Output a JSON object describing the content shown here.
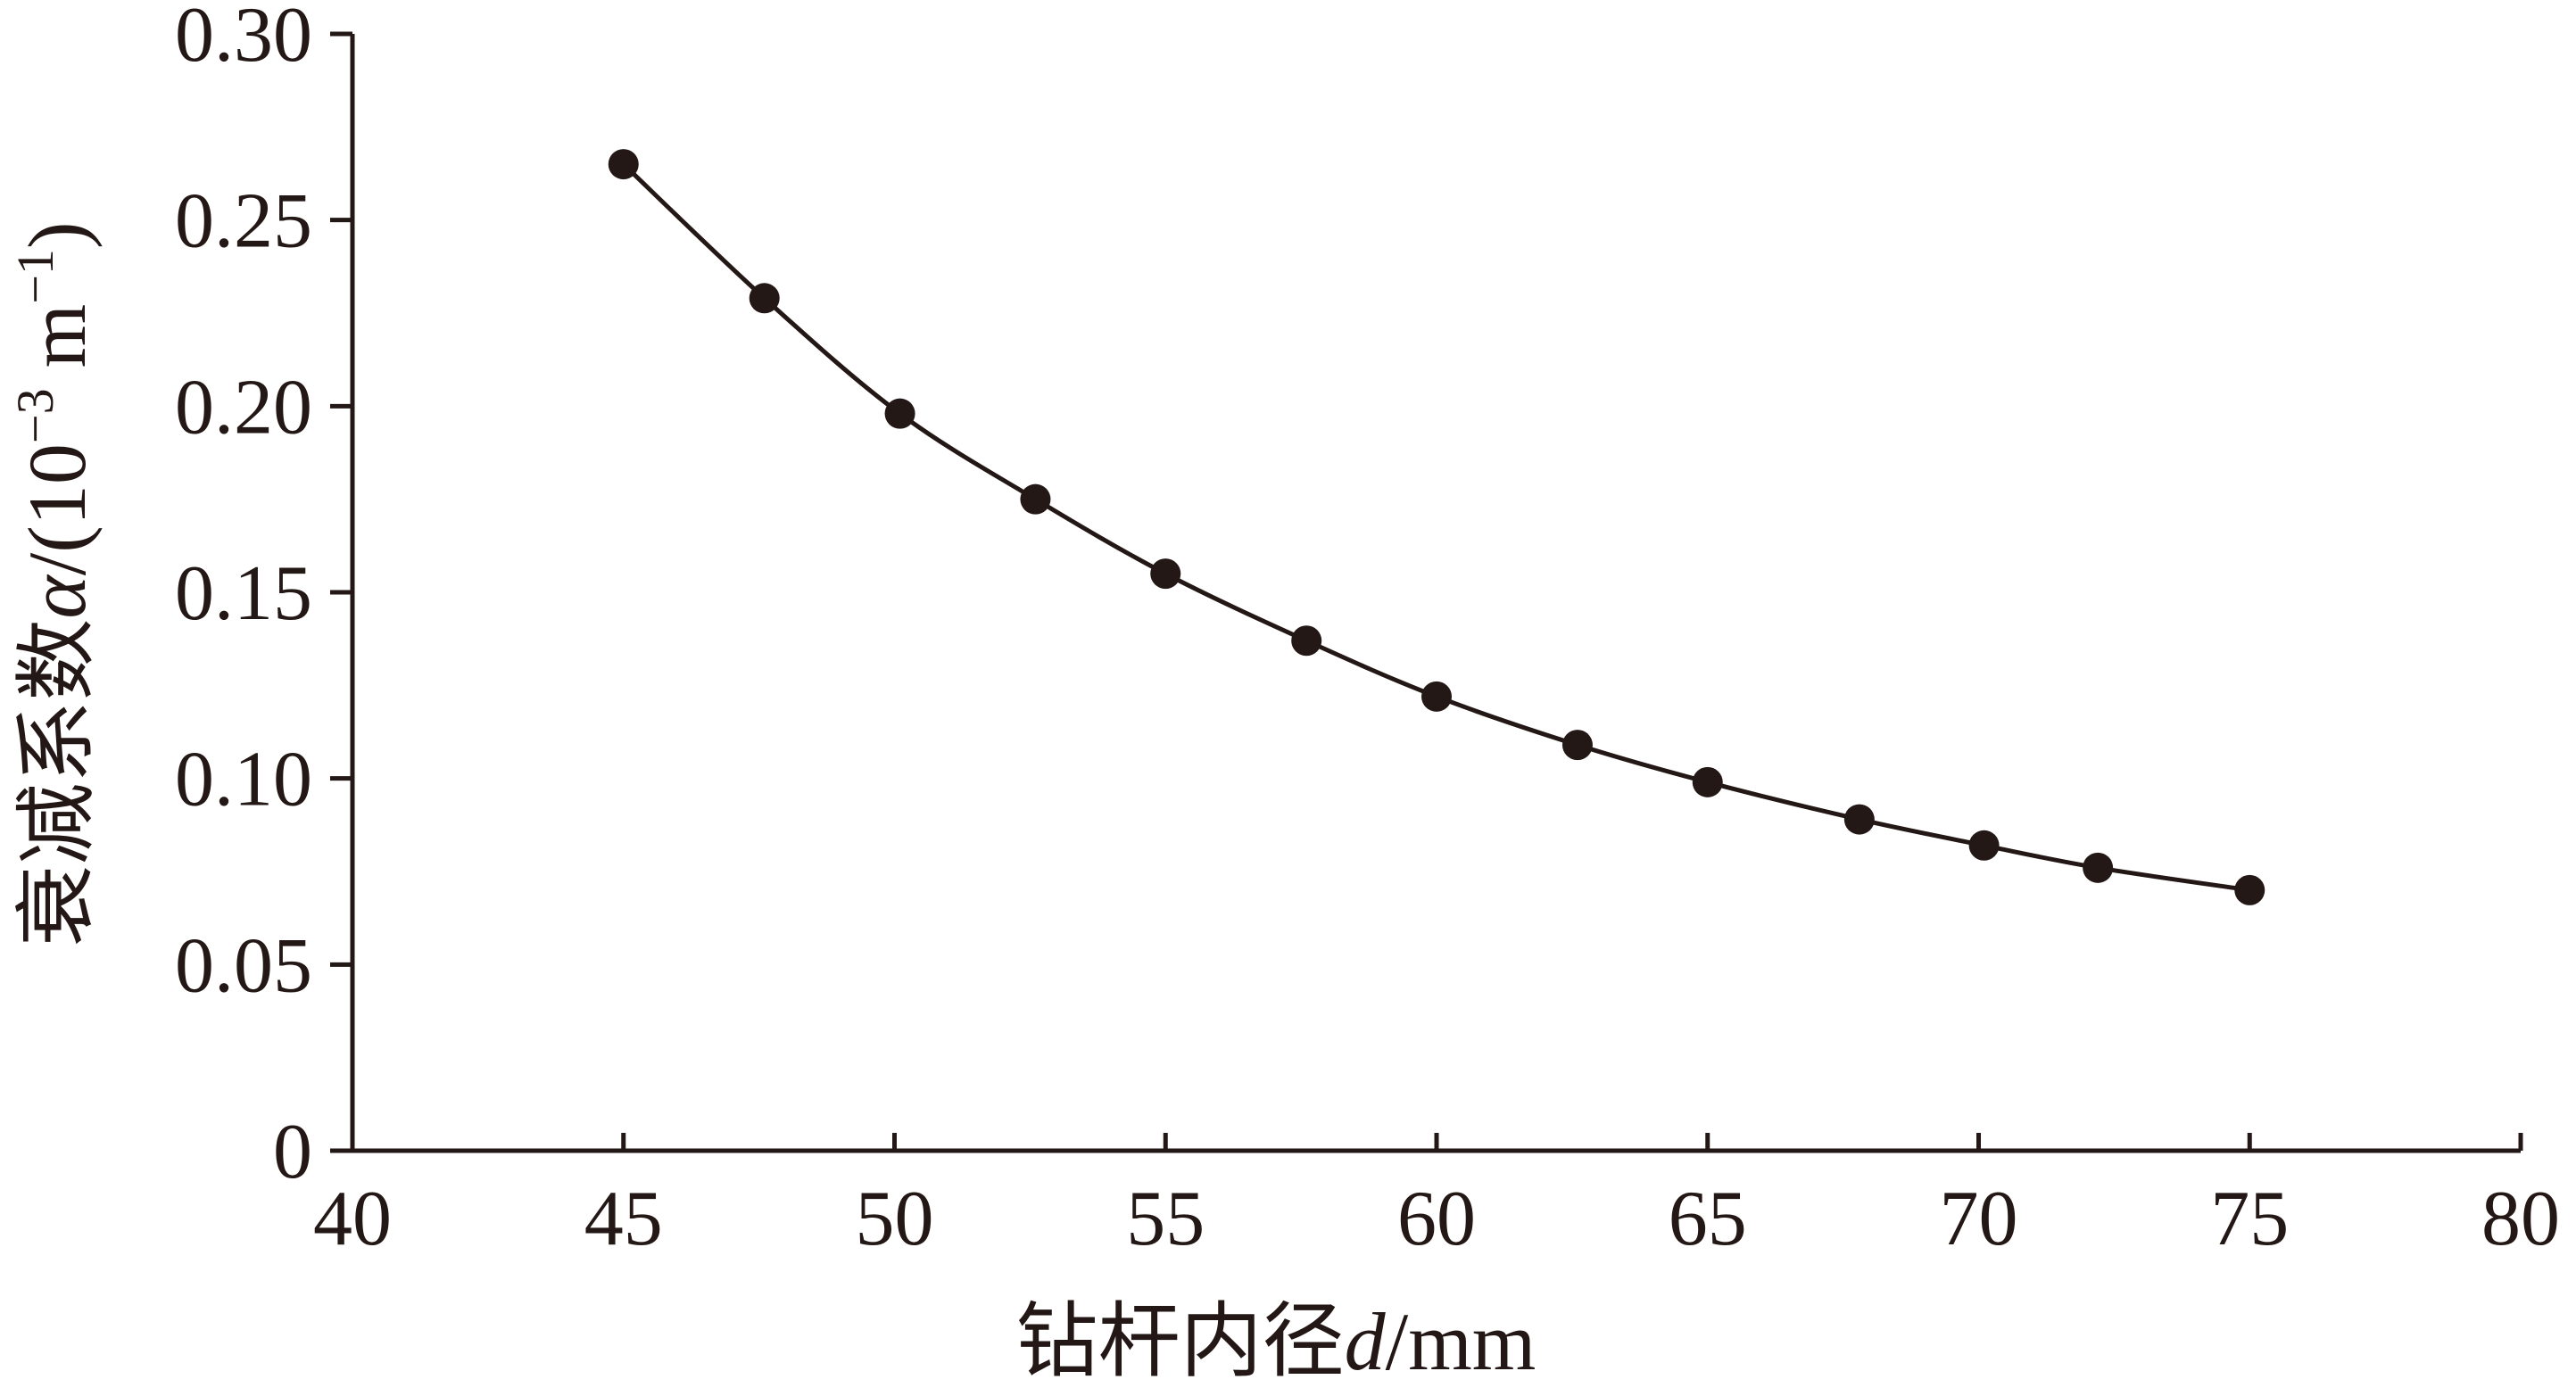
{
  "chart_data": {
    "type": "line",
    "xlabel": "钻杆内径d/mm",
    "xlabel_parts": {
      "text": "钻杆内径",
      "italic": "d",
      "unit": "/mm"
    },
    "ylabel": "衰减系数α/(10⁻³ m⁻¹)",
    "ylabel_parts": {
      "text": "衰减系数",
      "italic": "α",
      "unit_open": "/(10",
      "sup1": "−3",
      "unit_mid": " m",
      "sup2": "−1",
      "unit_close": ")"
    },
    "xlim": [
      40,
      80
    ],
    "ylim": [
      0,
      0.3
    ],
    "x_ticks": [
      40,
      45,
      50,
      55,
      60,
      65,
      70,
      75,
      80
    ],
    "x_tick_labels": [
      "40",
      "45",
      "50",
      "55",
      "60",
      "65",
      "70",
      "75",
      "80"
    ],
    "y_ticks": [
      0,
      0.05,
      0.1,
      0.15,
      0.2,
      0.25,
      0.3
    ],
    "y_tick_labels": [
      "0",
      "0.05",
      "0.10",
      "0.15",
      "0.20",
      "0.25",
      "0.30"
    ],
    "grid": false,
    "legend": "none",
    "series": [
      {
        "x": [
          45,
          47.6,
          50.1,
          52.6,
          55,
          57.6,
          60,
          62.6,
          65,
          67.8,
          70.1,
          72.2,
          75
        ],
        "y": [
          0.265,
          0.229,
          0.198,
          0.175,
          0.155,
          0.137,
          0.122,
          0.109,
          0.099,
          0.089,
          0.082,
          0.076,
          0.07
        ],
        "color": "#231815"
      }
    ]
  }
}
